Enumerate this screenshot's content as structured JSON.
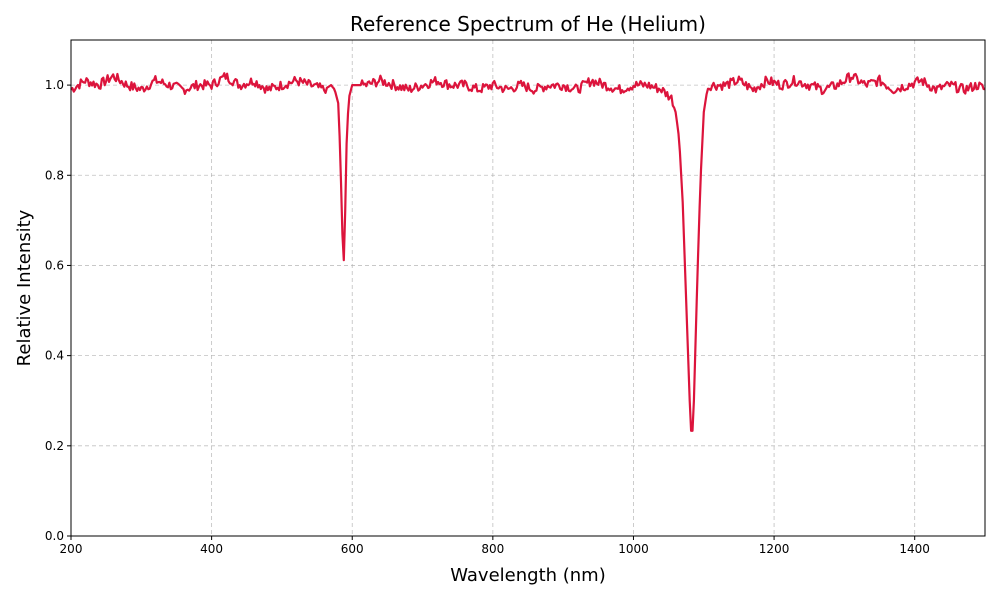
{
  "chart_data": {
    "type": "line",
    "title": "Reference Spectrum of He (Helium)",
    "xlabel": "Wavelength (nm)",
    "ylabel": "Relative Intensity",
    "xlim": [
      200,
      1500
    ],
    "ylim": [
      0,
      1.1
    ],
    "grid": true,
    "xticks": [
      200,
      400,
      600,
      800,
      1000,
      1200,
      1400
    ],
    "xtick_labels": [
      "200",
      "400",
      "600",
      "800",
      "1000",
      "1200",
      "1400"
    ],
    "yticks": [
      0.0,
      0.2,
      0.4,
      0.6,
      0.8,
      1.0
    ],
    "ytick_labels": [
      "0.0",
      "0.2",
      "0.4",
      "0.6",
      "0.8",
      "1.0"
    ],
    "series": [
      {
        "color": "#dc143c",
        "continuum": 1.0,
        "absorption_lines": [
          {
            "center": 587.6,
            "depth": 0.41
          },
          {
            "center": 1083.0,
            "depth": 0.8
          }
        ],
        "x": [
          200,
          220,
          240,
          260,
          280,
          300,
          320,
          340,
          360,
          380,
          400,
          420,
          440,
          460,
          480,
          500,
          520,
          540,
          560,
          570,
          575,
          580,
          583,
          585,
          587.6,
          590,
          592,
          595,
          600,
          620,
          640,
          660,
          680,
          700,
          720,
          740,
          760,
          780,
          800,
          820,
          840,
          860,
          880,
          900,
          920,
          940,
          960,
          980,
          1000,
          1020,
          1040,
          1055,
          1060,
          1065,
          1070,
          1075,
          1080,
          1083,
          1086,
          1090,
          1095,
          1100,
          1105,
          1110,
          1130,
          1150,
          1170,
          1190,
          1210,
          1230,
          1250,
          1270,
          1290,
          1310,
          1330,
          1350,
          1370,
          1390,
          1410,
          1430,
          1450,
          1470,
          1490,
          1500
        ],
        "y": [
          0.99,
          1.01,
          1.0,
          1.02,
          1.0,
          0.99,
          1.01,
          1.0,
          0.99,
          1.0,
          1.0,
          1.02,
          1.0,
          1.01,
          0.99,
          1.0,
          1.01,
          1.0,
          0.99,
          1.0,
          0.99,
          0.96,
          0.85,
          0.72,
          0.59,
          0.72,
          0.87,
          0.97,
          1.0,
          1.0,
          1.01,
          1.0,
          0.99,
          1.0,
          1.01,
          1.0,
          1.0,
          0.99,
          1.0,
          0.99,
          1.0,
          0.99,
          1.0,
          1.0,
          0.99,
          1.01,
          1.0,
          0.99,
          1.0,
          1.0,
          0.99,
          0.97,
          0.94,
          0.88,
          0.74,
          0.52,
          0.3,
          0.2,
          0.3,
          0.52,
          0.78,
          0.94,
          0.99,
          1.0,
          1.0,
          1.01,
          0.99,
          1.01,
          1.0,
          1.01,
          1.0,
          0.99,
          1.0,
          1.02,
          1.0,
          1.01,
          0.99,
          1.0,
          1.01,
          0.99,
          1.0,
          0.99,
          1.0,
          0.99
        ]
      }
    ]
  }
}
